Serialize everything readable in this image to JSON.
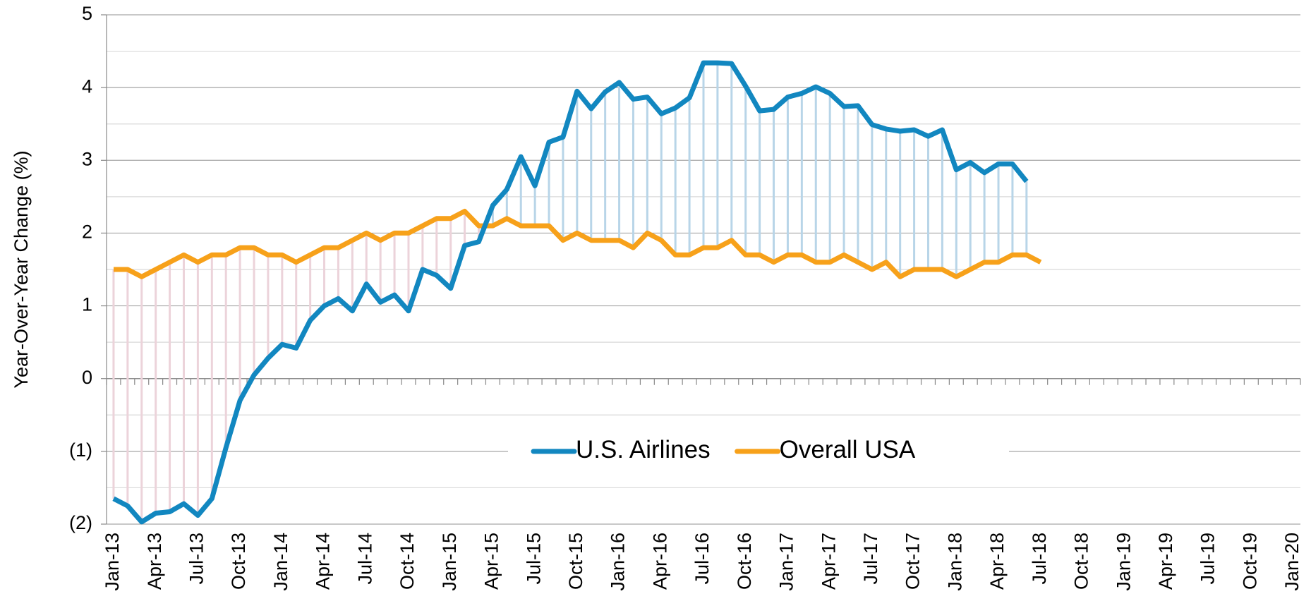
{
  "chart_data": {
    "type": "line",
    "y_axis_label": "Year-Over-Year Change (%)",
    "categories": [
      "Jan-13",
      null,
      null,
      "Apr-13",
      null,
      null,
      "Jul-13",
      null,
      null,
      "Oct-13",
      null,
      null,
      "Jan-14",
      null,
      null,
      "Apr-14",
      null,
      null,
      "Jul-14",
      null,
      null,
      "Oct-14",
      null,
      null,
      "Jan-15",
      null,
      null,
      "Apr-15",
      null,
      null,
      "Jul-15",
      null,
      null,
      "Oct-15",
      null,
      null,
      "Jan-16",
      null,
      null,
      "Apr-16",
      null,
      null,
      "Jul-16",
      null,
      null,
      "Oct-16",
      null,
      null,
      "Jan-17",
      null,
      null,
      "Apr-17",
      null,
      null,
      "Jul-17",
      null,
      null,
      "Oct-17",
      null,
      null,
      "Jan-18",
      null,
      null,
      "Apr-18",
      null,
      null,
      "Jul-18",
      null,
      null,
      "Oct-18",
      null,
      null,
      "Jan-19",
      null,
      null,
      "Apr-19",
      null,
      null,
      "Jul-19",
      null,
      null,
      "Oct-19",
      null,
      null,
      "Jan-20"
    ],
    "series": [
      {
        "name": "U.S. Airlines",
        "color": "#1287c0",
        "values": [
          -1.65,
          -1.75,
          -1.97,
          -1.85,
          -1.83,
          -1.72,
          -1.88,
          -1.65,
          -0.95,
          -0.3,
          0.05,
          0.28,
          0.47,
          0.42,
          0.8,
          1.0,
          1.1,
          0.93,
          1.3,
          1.05,
          1.15,
          0.93,
          1.5,
          1.42,
          1.24,
          1.83,
          1.88,
          2.38,
          2.6,
          3.05,
          2.65,
          3.25,
          3.32,
          3.95,
          3.71,
          3.94,
          4.07,
          3.84,
          3.87,
          3.64,
          3.72,
          3.86,
          4.34,
          4.34,
          4.33,
          4.02,
          3.68,
          3.7,
          3.87,
          3.92,
          4.01,
          3.92,
          3.74,
          3.75,
          3.49,
          3.43,
          3.4,
          3.42,
          3.33,
          3.42,
          2.87,
          2.97,
          2.83,
          2.95,
          2.95,
          2.71,
          null,
          null,
          null,
          null,
          null,
          null,
          null,
          null,
          null,
          null,
          null,
          null,
          null,
          null,
          null,
          null,
          null,
          null,
          null
        ]
      },
      {
        "name": "Overall USA",
        "color": "#f7a11a",
        "values": [
          1.5,
          1.5,
          1.4,
          1.5,
          1.6,
          1.7,
          1.6,
          1.7,
          1.7,
          1.8,
          1.8,
          1.7,
          1.7,
          1.6,
          1.7,
          1.8,
          1.8,
          1.9,
          2.0,
          1.9,
          2.0,
          2.0,
          2.1,
          2.2,
          2.2,
          2.3,
          2.1,
          2.1,
          2.2,
          2.1,
          2.1,
          2.1,
          1.9,
          2.0,
          1.9,
          1.9,
          1.9,
          1.8,
          2.0,
          1.9,
          1.7,
          1.7,
          1.8,
          1.8,
          1.9,
          1.7,
          1.7,
          1.6,
          1.7,
          1.7,
          1.6,
          1.6,
          1.7,
          1.6,
          1.5,
          1.6,
          1.4,
          1.5,
          1.5,
          1.5,
          1.4,
          1.5,
          1.6,
          1.6,
          1.7,
          1.7,
          1.6,
          null,
          null,
          null,
          null,
          null,
          null,
          null,
          null,
          null,
          null,
          null,
          null,
          null,
          null,
          null,
          null,
          null,
          null
        ]
      }
    ],
    "drop_line_colors": {
      "below": "#ecd3da",
      "above": "#b8d5e8"
    },
    "ylim": [
      -2,
      5
    ],
    "yticks": [
      {
        "value": -2,
        "label": "(2)"
      },
      {
        "value": -1,
        "label": "(1)"
      },
      0,
      1,
      2,
      3,
      4,
      5
    ],
    "negative_tick_color": "#ff0000",
    "grid": true,
    "minor_grid": true,
    "legend": "center"
  }
}
